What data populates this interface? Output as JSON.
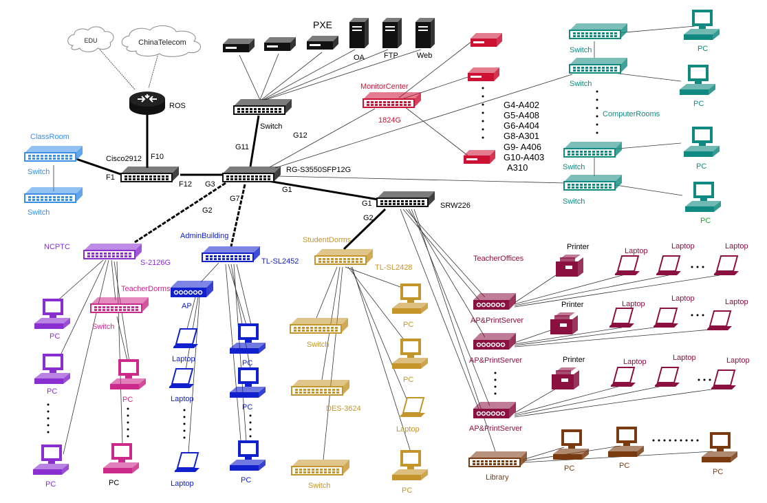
{
  "colors": {
    "core": "#111111",
    "classroom": "#3a8ee6",
    "monitor": "#cc1133",
    "computer_rooms": "#108a80",
    "ncptc": "#8a2ed0",
    "teacher_dorms": "#cc2a8a",
    "admin": "#1020cc",
    "student": "#c4952a",
    "teacher_offices": "#8a1040",
    "library": "#7a3a10",
    "label": "#000000"
  },
  "clouds": {
    "edu": "EDU",
    "chinatelecom": "ChinaTelecom"
  },
  "core": {
    "ros": "ROS",
    "cisco": "Cisco2912",
    "f10": "F10",
    "f1": "F1",
    "f12": "F12",
    "g3": "G3",
    "rg": "RG-S3550SFP12G",
    "g11": "G11",
    "g12": "G12",
    "g1_rg": "G1",
    "g2_rg": "G2",
    "g7": "G7",
    "pxe": "PXE",
    "server_switch": "Switch",
    "oa": "OA",
    "ftp": "FTP",
    "web": "Web"
  },
  "srw": {
    "name": "SRW226",
    "g1": "G1",
    "g2": "G2"
  },
  "classroom": {
    "label": "ClassRoom",
    "switch_1": "Switch",
    "switch_2": "Switch"
  },
  "monitor": {
    "center": "MonitorCenter",
    "model": "1824G",
    "vlans": [
      "G4-A402",
      "G5-A408",
      "G6-A404",
      "G8-A301",
      "G9- A406",
      "G10-A403",
      "A310"
    ]
  },
  "computer_rooms": {
    "label": "ComputerRooms",
    "switches": [
      "Switch",
      "Switch",
      "Switch",
      "Switch"
    ],
    "pcs": [
      "PC",
      "PC",
      "PC",
      "PC"
    ]
  },
  "ncptc": {
    "label": "NCPTC",
    "model": "S-2126G",
    "pcs": [
      "PC",
      "PC",
      "PC"
    ]
  },
  "teacher_dorms": {
    "label": "TeacherDorms",
    "switch": "Switch",
    "pcs": [
      "PC",
      "PC"
    ]
  },
  "admin": {
    "label": "AdminBuilding",
    "model": "TL-SL2452",
    "ap": "AP",
    "laptops": [
      "Laptop",
      "Laptop",
      "Laptop"
    ],
    "pcs": [
      "PC",
      "PC",
      "PC"
    ]
  },
  "student": {
    "label": "StudentDorms",
    "model": "TL-SL2428",
    "switch_1": "Switch",
    "des": "DES-3624",
    "switch_2": "Switch",
    "pcs": [
      "PC",
      "PC",
      "PC"
    ],
    "laptop": "Laptop"
  },
  "teacher_offices": {
    "label": "TeacherOffices",
    "ap_print": [
      "AP&PrintServer",
      "AP&PrintServer",
      "AP&PrintServer"
    ],
    "printers": [
      "Printer",
      "Printer",
      "Printer"
    ],
    "laptops": [
      "Laptop",
      "Laptop",
      "Laptop",
      "Laptop",
      "Laptop",
      "Laptop",
      "Laptop",
      "Laptop",
      "Laptop"
    ]
  },
  "library": {
    "label": "Library",
    "pcs": [
      "PC",
      "PC",
      "PC"
    ]
  }
}
